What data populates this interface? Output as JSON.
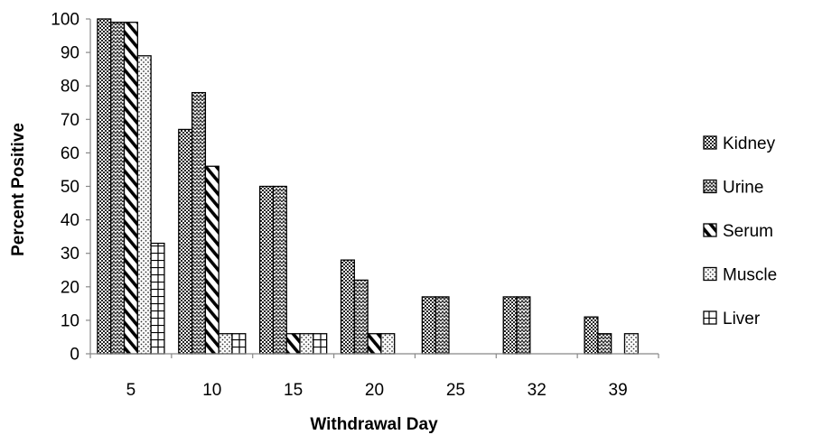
{
  "chart_data": {
    "type": "bar",
    "title": "",
    "xlabel": "Withdrawal Day",
    "ylabel": "Percent Positive",
    "ylim": [
      0,
      100
    ],
    "yticks": [
      0,
      10,
      20,
      30,
      40,
      50,
      60,
      70,
      80,
      90,
      100
    ],
    "categories": [
      "5",
      "10",
      "15",
      "20",
      "25",
      "32",
      "39"
    ],
    "series": [
      {
        "name": "Kidney",
        "pattern": "dots-dense",
        "values": [
          100,
          67,
          50,
          28,
          17,
          17,
          11
        ]
      },
      {
        "name": "Urine",
        "pattern": "zigzag",
        "values": [
          99,
          78,
          50,
          22,
          17,
          17,
          6
        ]
      },
      {
        "name": "Serum",
        "pattern": "diagonal",
        "values": [
          99,
          56,
          6,
          6,
          0,
          0,
          0
        ]
      },
      {
        "name": "Muscle",
        "pattern": "dots-sparse",
        "values": [
          89,
          6,
          6,
          6,
          0,
          0,
          6
        ]
      },
      {
        "name": "Liver",
        "pattern": "bricks",
        "values": [
          33,
          6,
          6,
          0,
          0,
          0,
          0
        ]
      }
    ],
    "legend": "right",
    "grid": false
  }
}
